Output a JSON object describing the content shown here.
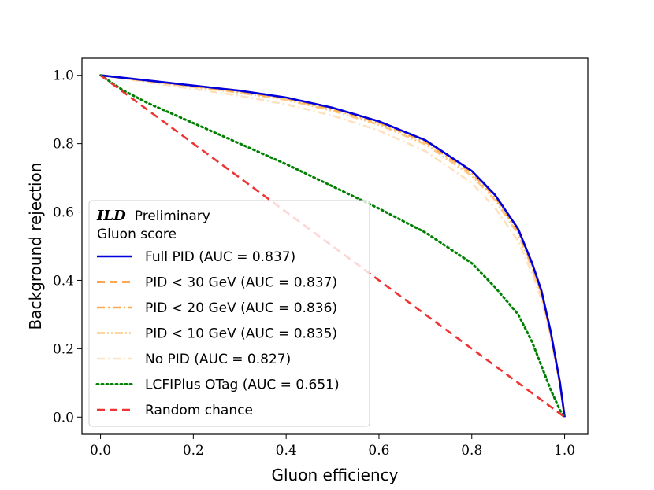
{
  "chart_data": {
    "type": "line",
    "xlabel": "Gluon efficiency",
    "ylabel": "Background rejection",
    "xlim": [
      -0.04,
      1.05
    ],
    "ylim": [
      -0.05,
      1.05
    ],
    "xticks": [
      0.0,
      0.2,
      0.4,
      0.6,
      0.8,
      1.0
    ],
    "xtick_labels": [
      "0.0",
      "0.2",
      "0.4",
      "0.6",
      "0.8",
      "1.0"
    ],
    "yticks": [
      0.0,
      0.2,
      0.4,
      0.6,
      0.8,
      1.0
    ],
    "ytick_labels": [
      "0.0",
      "0.2",
      "0.4",
      "0.6",
      "0.8",
      "1.0"
    ],
    "legend": {
      "placement": "lower-left",
      "title_bold": "ILD",
      "title_rest": "Preliminary",
      "subtitle": "Gluon score"
    },
    "series": [
      {
        "name": "Full PID (AUC = 0.837)",
        "color": "#0000dd",
        "style": "solid",
        "x": [
          0.0,
          0.1,
          0.2,
          0.3,
          0.4,
          0.5,
          0.6,
          0.7,
          0.8,
          0.85,
          0.9,
          0.93,
          0.95,
          0.97,
          0.99,
          1.0
        ],
        "y": [
          1.0,
          0.985,
          0.97,
          0.955,
          0.935,
          0.905,
          0.865,
          0.81,
          0.72,
          0.65,
          0.55,
          0.45,
          0.37,
          0.25,
          0.1,
          0.0
        ]
      },
      {
        "name": "PID < 30 GeV (AUC = 0.837)",
        "color": "#ff8c1a",
        "style": "dashed",
        "x": [
          0.0,
          0.1,
          0.2,
          0.3,
          0.4,
          0.5,
          0.6,
          0.7,
          0.8,
          0.85,
          0.9,
          0.93,
          0.95,
          0.97,
          0.99,
          1.0
        ],
        "y": [
          1.0,
          0.985,
          0.97,
          0.955,
          0.935,
          0.905,
          0.865,
          0.81,
          0.72,
          0.65,
          0.55,
          0.45,
          0.37,
          0.25,
          0.1,
          0.0
        ]
      },
      {
        "name": "PID < 20 GeV (AUC = 0.836)",
        "color": "#ffa94d",
        "style": "dashdot",
        "x": [
          0.0,
          0.1,
          0.2,
          0.3,
          0.4,
          0.5,
          0.6,
          0.7,
          0.8,
          0.85,
          0.9,
          0.93,
          0.95,
          0.97,
          0.99,
          1.0
        ],
        "y": [
          1.0,
          0.984,
          0.968,
          0.952,
          0.932,
          0.901,
          0.861,
          0.805,
          0.714,
          0.643,
          0.543,
          0.443,
          0.364,
          0.245,
          0.098,
          0.0
        ]
      },
      {
        "name": "PID < 10 GeV (AUC = 0.835)",
        "color": "#ffc880",
        "style": "dashdotdot",
        "x": [
          0.0,
          0.1,
          0.2,
          0.3,
          0.4,
          0.5,
          0.6,
          0.7,
          0.8,
          0.85,
          0.9,
          0.93,
          0.95,
          0.97,
          0.99,
          1.0
        ],
        "y": [
          1.0,
          0.983,
          0.966,
          0.949,
          0.928,
          0.896,
          0.855,
          0.798,
          0.706,
          0.635,
          0.535,
          0.436,
          0.358,
          0.24,
          0.096,
          0.0
        ]
      },
      {
        "name": "No PID (AUC = 0.827)",
        "color": "#fde2c0",
        "style": "dashdot",
        "x": [
          0.0,
          0.1,
          0.2,
          0.3,
          0.4,
          0.5,
          0.6,
          0.7,
          0.8,
          0.85,
          0.9,
          0.93,
          0.95,
          0.97,
          0.99,
          1.0
        ],
        "y": [
          1.0,
          0.98,
          0.96,
          0.94,
          0.915,
          0.882,
          0.838,
          0.778,
          0.685,
          0.612,
          0.515,
          0.42,
          0.345,
          0.232,
          0.092,
          0.0
        ]
      },
      {
        "name": "LCFIPlus OTag (AUC = 0.651)",
        "color": "#008000",
        "style": "dotted",
        "x": [
          0.0,
          0.05,
          0.1,
          0.2,
          0.3,
          0.4,
          0.5,
          0.6,
          0.7,
          0.8,
          0.85,
          0.9,
          0.93,
          0.95,
          0.97,
          0.99,
          1.0
        ],
        "y": [
          1.0,
          0.955,
          0.92,
          0.86,
          0.8,
          0.74,
          0.675,
          0.61,
          0.54,
          0.45,
          0.38,
          0.3,
          0.22,
          0.15,
          0.08,
          0.02,
          0.0
        ]
      },
      {
        "name": "Random chance",
        "color": "#ee3333",
        "style": "dashed",
        "x": [
          0.0,
          1.0
        ],
        "y": [
          1.0,
          0.0
        ]
      }
    ]
  }
}
